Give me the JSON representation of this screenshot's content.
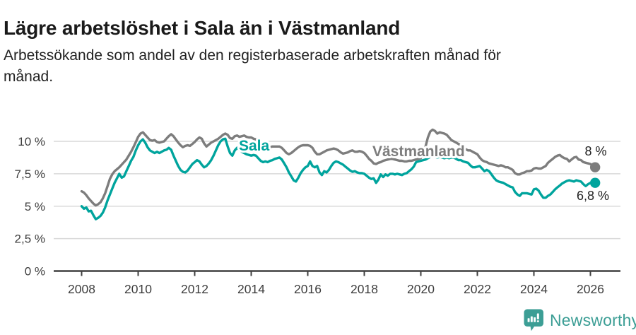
{
  "page": {
    "title": "Lägre arbetslöshet i Sala än i Västmanland",
    "subtitle_lines": [
      "Arbetssökande som andel av den registerbaserade arbetskraften månad för",
      "månad."
    ]
  },
  "chart_data": {
    "type": "line",
    "title": "Lägre arbetslöshet i Sala än i Västmanland",
    "subtitle": "Arbetssökande som andel av den registerbaserade arbetskraften månad för månad.",
    "unit": "%",
    "grid": true,
    "x_start_year": 2008,
    "points_per_year": 12,
    "x_ticks": [
      2008,
      2010,
      2012,
      2014,
      2016,
      2018,
      2020,
      2022,
      2024,
      2026
    ],
    "y_ticks": [
      {
        "value": 0,
        "label": "0 %"
      },
      {
        "value": 2.5,
        "label": "2,5 %"
      },
      {
        "value": 5,
        "label": "5 %"
      },
      {
        "value": 7.5,
        "label": "7,5 %"
      },
      {
        "value": 10,
        "label": "10 %"
      }
    ],
    "ylim": [
      0,
      11.6
    ],
    "axis_color": "#3f3f3f",
    "tick_label_color": "#3d3d3d",
    "grid_color": "#d9d9d9",
    "end_label_color": "#222222",
    "series": [
      {
        "name": "Västmanland",
        "slug": "vastmanland",
        "color": "#7d7d7d",
        "inline_label": "Västmanland",
        "end_label": "8 %",
        "end_value": 8.0,
        "values": [
          6.15,
          6.05,
          5.85,
          5.6,
          5.4,
          5.2,
          5.05,
          5.15,
          5.3,
          5.6,
          6,
          6.55,
          7.1,
          7.45,
          7.7,
          7.85,
          8,
          8.2,
          8.4,
          8.6,
          8.9,
          9.2,
          9.55,
          9.95,
          10.35,
          10.6,
          10.7,
          10.5,
          10.3,
          10.1,
          10.05,
          10.1,
          9.95,
          9.9,
          9.95,
          10,
          10.2,
          10.4,
          10.55,
          10.4,
          10.15,
          9.9,
          9.7,
          9.55,
          9.65,
          9.7,
          9.65,
          9.8,
          9.95,
          10.15,
          10.3,
          10.2,
          9.85,
          9.6,
          9.75,
          9.9,
          10,
          10.1,
          10.2,
          10.35,
          10.5,
          10.6,
          10.5,
          10.25,
          10.2,
          10.4,
          10.45,
          10.35,
          10.4,
          10.45,
          10.35,
          10.3,
          10.3,
          10.2,
          10.15,
          10,
          9.8,
          9.6,
          9.5,
          9.5,
          9.55,
          9.6,
          9.6,
          9.6,
          9.6,
          9.5,
          9.3,
          9.1,
          9,
          9.1,
          9.25,
          9.4,
          9.55,
          9.65,
          9.7,
          9.7,
          9.7,
          9.65,
          9.5,
          9.2,
          9,
          9,
          9.1,
          9.2,
          9.3,
          9.35,
          9.4,
          9.45,
          9.4,
          9.3,
          9.15,
          9.05,
          9.1,
          9.15,
          9.25,
          9.3,
          9.2,
          9.2,
          9.25,
          9.2,
          9.1,
          8.9,
          8.65,
          8.5,
          8.3,
          8.25,
          8.35,
          8.4,
          8.5,
          8.55,
          8.6,
          8.65,
          8.65,
          8.6,
          8.55,
          8.5,
          8.5,
          8.45,
          8.45,
          8.5,
          8.5,
          8.55,
          8.6,
          8.65,
          8.7,
          9,
          9.6,
          10.3,
          10.75,
          10.9,
          10.8,
          10.6,
          10.7,
          10.65,
          10.6,
          10.5,
          10.3,
          10.1,
          10,
          9.9,
          9.8,
          9.7,
          9.55,
          9.4,
          9.3,
          9.3,
          9.2,
          9.1,
          9,
          8.75,
          8.55,
          8.45,
          8.4,
          8.3,
          8.25,
          8.2,
          8.15,
          8.1,
          8.15,
          8.1,
          8,
          8,
          7.9,
          7.8,
          7.55,
          7.45,
          7.45,
          7.55,
          7.6,
          7.7,
          7.7,
          7.75,
          7.9,
          7.95,
          7.9,
          7.9,
          8,
          8.1,
          8.35,
          8.5,
          8.65,
          8.8,
          8.9,
          8.95,
          8.8,
          8.7,
          8.65,
          8.45,
          8.6,
          8.75,
          8.8,
          8.6,
          8.55,
          8.4,
          8.35,
          8.3,
          8.25,
          8.1,
          8
        ]
      },
      {
        "name": "Sala",
        "slug": "sala",
        "color": "#00a49d",
        "inline_label": "Sala",
        "end_label": "6,8 %",
        "end_value": 6.8,
        "values": [
          5,
          4.8,
          4.9,
          4.6,
          4.65,
          4.3,
          4,
          4.1,
          4.25,
          4.5,
          4.9,
          5.45,
          5.9,
          6.35,
          6.8,
          7.15,
          7.5,
          7.2,
          7.3,
          7.7,
          8.1,
          8.5,
          8.8,
          9.3,
          9.7,
          10,
          10.15,
          9.9,
          9.55,
          9.3,
          9.2,
          9.1,
          9.2,
          9.1,
          9.2,
          9.3,
          9.35,
          9.5,
          9.35,
          8.9,
          8.5,
          8.1,
          7.8,
          7.65,
          7.6,
          7.75,
          8,
          8.25,
          8.4,
          8.55,
          8.45,
          8.2,
          8,
          8.1,
          8.3,
          8.55,
          8.9,
          9.3,
          9.7,
          10,
          10.15,
          10.2,
          9.6,
          9.1,
          8.9,
          9.3,
          9.5,
          9.35,
          9.2,
          9.1,
          9,
          8.95,
          8.9,
          8.95,
          8.9,
          8.7,
          8.5,
          8.4,
          8.45,
          8.4,
          8.5,
          8.55,
          8.65,
          8.7,
          8.75,
          8.6,
          8.3,
          8,
          7.6,
          7.3,
          7,
          6.9,
          7.2,
          7.55,
          7.8,
          8,
          8.1,
          8.45,
          8.1,
          8,
          8.1,
          7.6,
          7.4,
          7.7,
          7.6,
          7.8,
          8.1,
          8.35,
          8.45,
          8.4,
          8.3,
          8.2,
          8.05,
          7.9,
          7.75,
          7.65,
          7.7,
          7.6,
          7.55,
          7.55,
          7.5,
          7.35,
          7.2,
          7.1,
          7.15,
          6.8,
          7.05,
          7.45,
          7.25,
          7.45,
          7.35,
          7.5,
          7.5,
          7.45,
          7.5,
          7.45,
          7.4,
          7.5,
          7.55,
          7.7,
          7.85,
          8.05,
          8.4,
          8.45,
          8.5,
          8.55,
          8.6,
          8.7,
          8.8,
          8.85,
          8.8,
          8.75,
          8.8,
          8.75,
          8.7,
          8.75,
          8.7,
          8.75,
          8.75,
          8.65,
          8.55,
          8.55,
          8.45,
          8.4,
          8.35,
          8.15,
          8,
          8,
          8.05,
          8.1,
          7.9,
          7.7,
          7.8,
          7.7,
          7.45,
          7.2,
          7,
          6.9,
          6.85,
          6.8,
          6.7,
          6.6,
          6.5,
          6.45,
          6.1,
          5.9,
          5.8,
          6,
          6,
          6,
          5.95,
          5.9,
          6.3,
          6.35,
          6.2,
          5.9,
          5.65,
          5.65,
          5.8,
          5.9,
          6.1,
          6.3,
          6.45,
          6.6,
          6.75,
          6.85,
          6.95,
          7,
          6.95,
          6.9,
          7,
          6.95,
          6.9,
          6.7,
          6.55,
          6.7,
          6.8,
          6.75,
          6.8
        ]
      }
    ],
    "legend_position": "inline-labels"
  },
  "footer": {
    "brand": "Newsworthy",
    "icon": "newsworthy-barchart-bubble-icon",
    "color": "#3c9e95"
  }
}
